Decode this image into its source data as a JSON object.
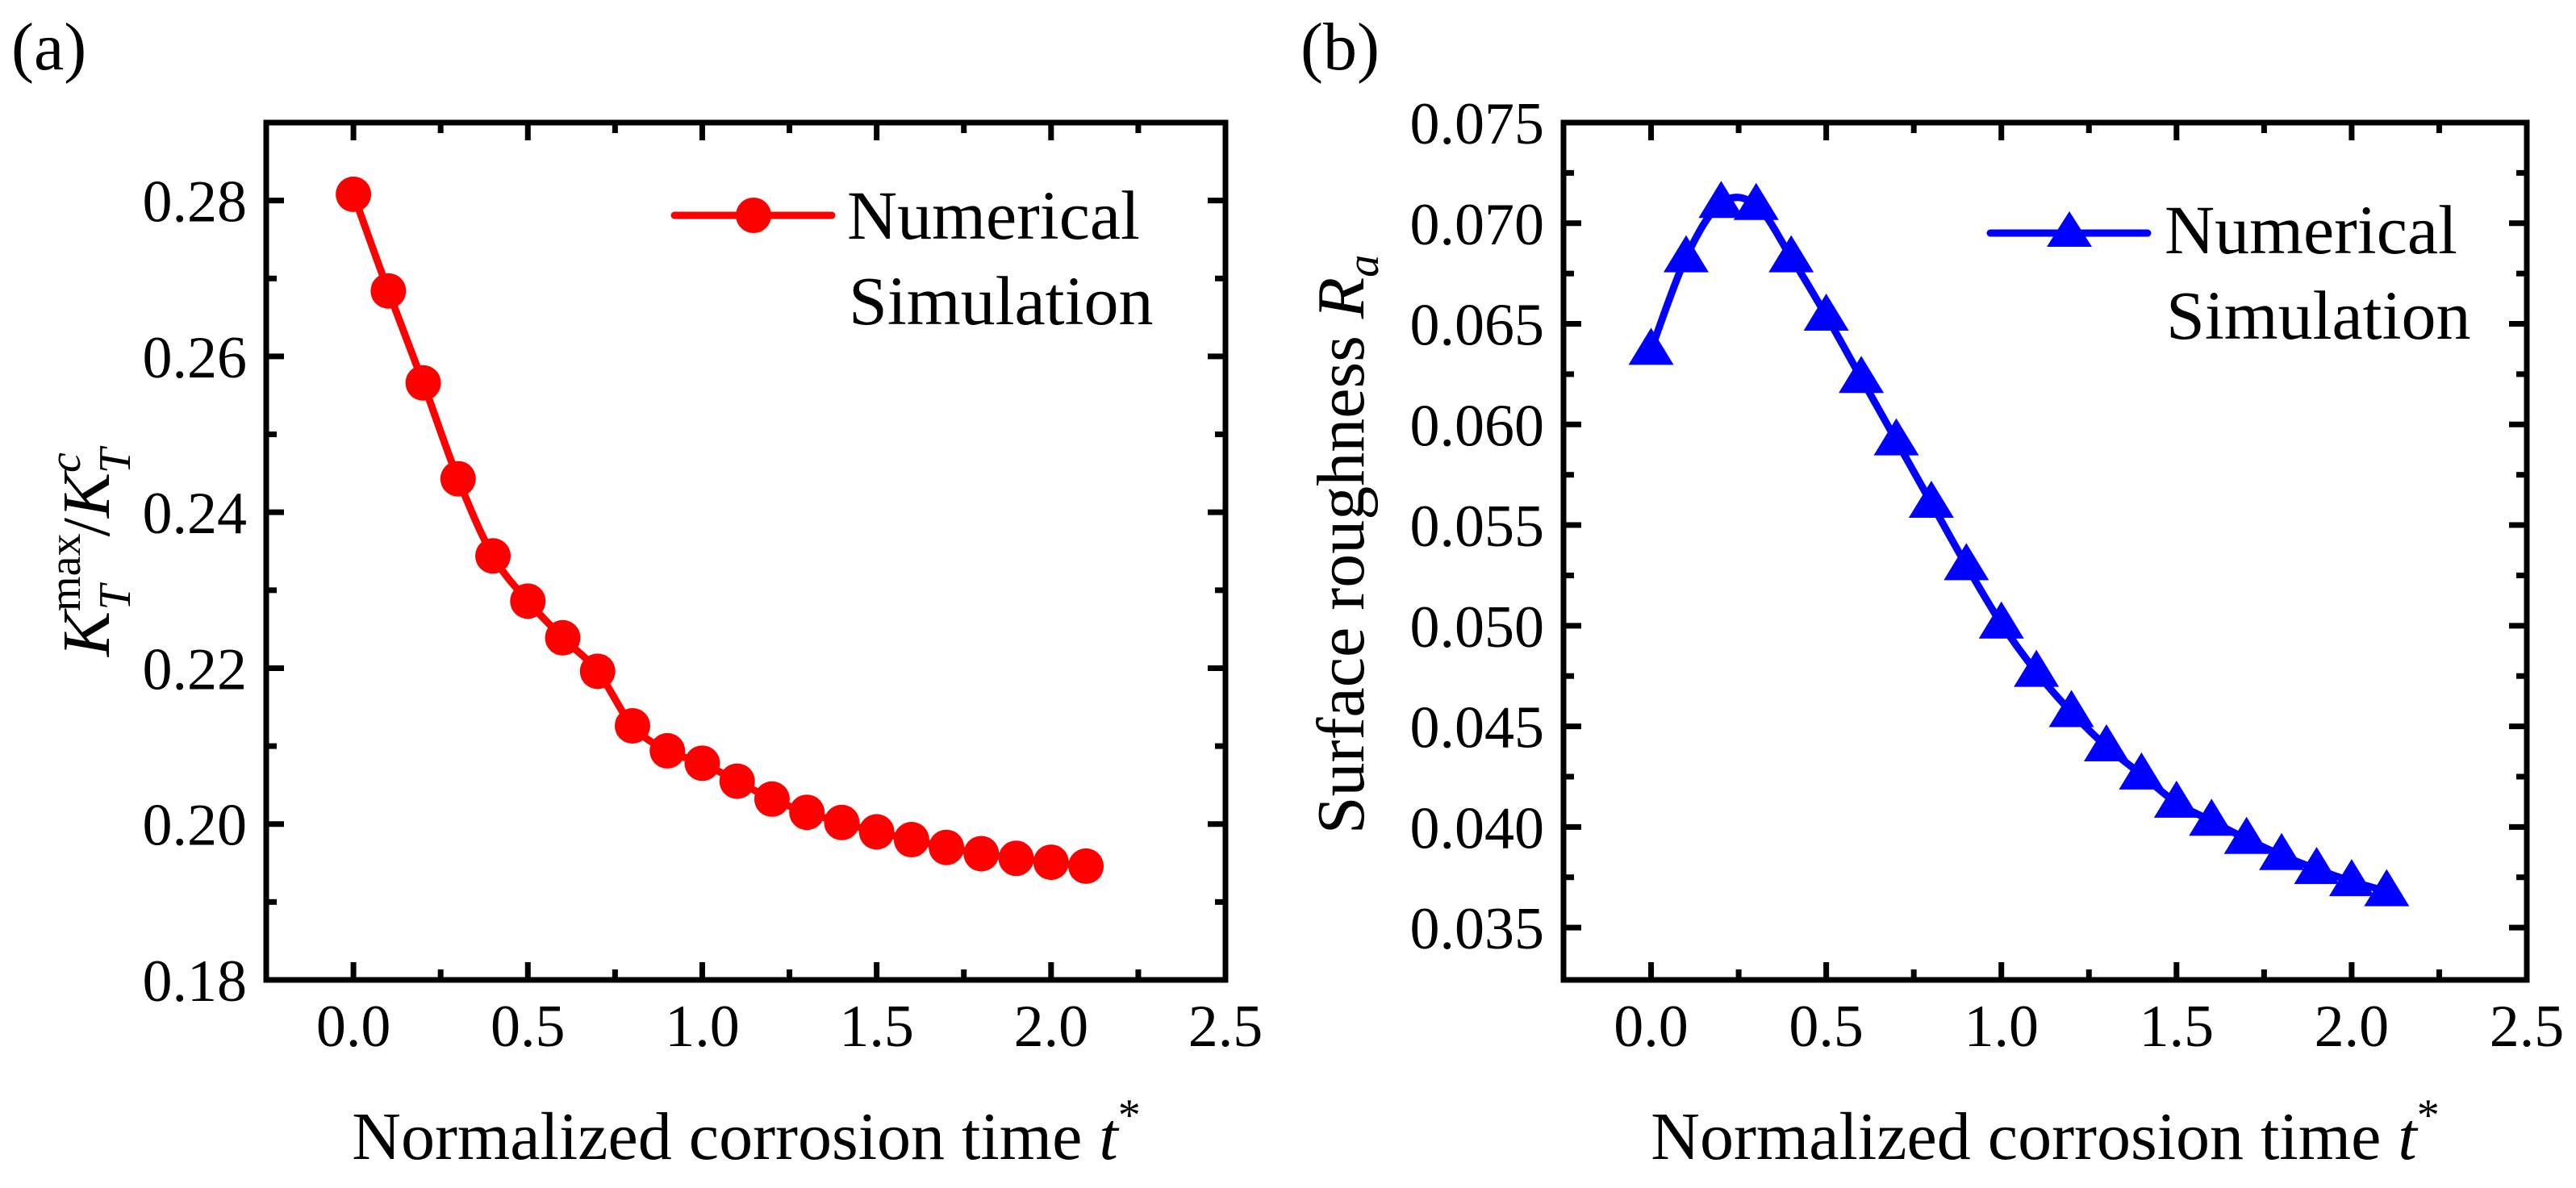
{
  "chart_data": [
    {
      "type": "line",
      "panel_label": "(a)",
      "title": "",
      "xlabel": "Normalized corrosion time",
      "xlabel_symbol": "t",
      "xlabel_sup": "*",
      "ylabel": "K_T^max / K_T^c",
      "ylabel_parts": {
        "k1": "K",
        "sub1": "T",
        "sup1": "max",
        "slash": "/",
        "k2": "K",
        "sub2": "T",
        "sup2": "c"
      },
      "xlim": [
        -0.25,
        2.5
      ],
      "ylim": [
        0.18,
        0.29
      ],
      "xticks": [
        0.0,
        0.5,
        1.0,
        1.5,
        2.0,
        2.5
      ],
      "xtick_labels": [
        "0.0",
        "0.5",
        "1.0",
        "1.5",
        "2.0",
        "2.5"
      ],
      "yticks": [
        0.18,
        0.2,
        0.22,
        0.24,
        0.26,
        0.28
      ],
      "ytick_labels": [
        "0.18",
        "0.20",
        "0.22",
        "0.24",
        "0.26",
        "0.28"
      ],
      "grid": false,
      "legend_position": "top-right",
      "series": [
        {
          "name": "Numerical Simulation",
          "legend_lines": [
            "Numerical",
            "Simulation"
          ],
          "color": "#ff0000",
          "marker": "circle",
          "x": [
            0.0,
            0.1,
            0.2,
            0.3,
            0.4,
            0.5,
            0.6,
            0.7,
            0.8,
            0.9,
            1.0,
            1.1,
            1.2,
            1.3,
            1.4,
            1.5,
            1.6,
            1.7,
            1.8,
            1.9,
            2.0,
            2.1
          ],
          "y": [
            0.2808,
            0.2684,
            0.2566,
            0.2443,
            0.2344,
            0.2286,
            0.2239,
            0.2196,
            0.2126,
            0.2094,
            0.2078,
            0.2055,
            0.2032,
            0.2015,
            0.2002,
            0.199,
            0.198,
            0.197,
            0.1962,
            0.1956,
            0.1951,
            0.1946
          ]
        }
      ]
    },
    {
      "type": "line",
      "panel_label": "(b)",
      "title": "",
      "xlabel": "Normalized corrosion time",
      "xlabel_symbol": "t",
      "xlabel_sup": "*",
      "ylabel": "Surface roughness",
      "ylabel_symbol": "R",
      "ylabel_sub": "a",
      "xlim": [
        -0.25,
        2.5
      ],
      "ylim": [
        0.0324,
        0.075
      ],
      "xticks": [
        0.0,
        0.5,
        1.0,
        1.5,
        2.0,
        2.5
      ],
      "xtick_labels": [
        "0.0",
        "0.5",
        "1.0",
        "1.5",
        "2.0",
        "2.5"
      ],
      "yticks": [
        0.035,
        0.04,
        0.045,
        0.05,
        0.055,
        0.06,
        0.065,
        0.07,
        0.075
      ],
      "ytick_labels": [
        "0.035",
        "0.040",
        "0.045",
        "0.050",
        "0.055",
        "0.060",
        "0.065",
        "0.070",
        "0.075"
      ],
      "grid": false,
      "legend_position": "top-right",
      "series": [
        {
          "name": "Numerical Simulation",
          "legend_lines": [
            "Numerical",
            "Simulation"
          ],
          "color": "#0000ff",
          "marker": "triangle",
          "x": [
            0.0,
            0.1,
            0.2,
            0.3,
            0.4,
            0.5,
            0.6,
            0.7,
            0.8,
            0.9,
            1.0,
            1.1,
            1.2,
            1.3,
            1.4,
            1.5,
            1.6,
            1.7,
            1.8,
            1.9,
            2.0,
            2.1
          ],
          "y": [
            0.0637,
            0.0683,
            0.071,
            0.0709,
            0.0683,
            0.0654,
            0.0623,
            0.0592,
            0.0561,
            0.053,
            0.0501,
            0.0477,
            0.0457,
            0.044,
            0.0426,
            0.0412,
            0.0403,
            0.0394,
            0.0386,
            0.0379,
            0.0373,
            0.0368
          ]
        }
      ]
    }
  ]
}
